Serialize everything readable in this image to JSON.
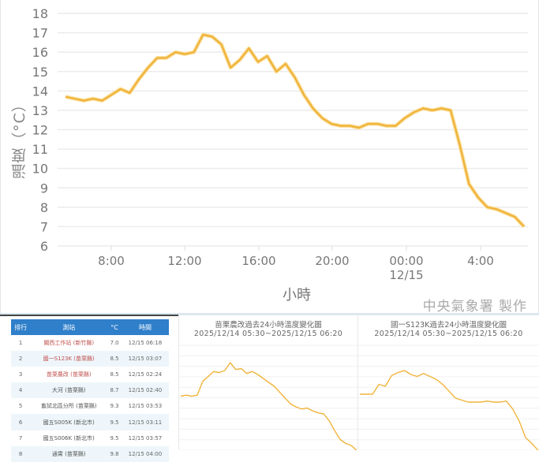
{
  "main_chart": {
    "ylabel": "溫度（°C）",
    "xlabel": "小時",
    "credit": "中央氣象署 製作",
    "line_color": "#f0b43c",
    "y_ticks": [
      "18",
      "17",
      "16",
      "15",
      "14",
      "13",
      "12",
      "11",
      "10",
      "9",
      "8",
      "7",
      "6"
    ],
    "x_ticks": [
      {
        "label": "8:00",
        "sub": ""
      },
      {
        "label": "12:00",
        "sub": ""
      },
      {
        "label": "16:00",
        "sub": ""
      },
      {
        "label": "20:00",
        "sub": ""
      },
      {
        "label": "00:00",
        "sub": "12/15"
      },
      {
        "label": "4:00",
        "sub": ""
      }
    ]
  },
  "ranking_table": {
    "header": {
      "rank": "排行",
      "station": "測站",
      "temp": "°C",
      "time": "時間"
    },
    "rows": [
      {
        "rank": "1",
        "station": "關西工作站 (新竹縣)",
        "temp": "7.0",
        "time": "12/15 06:18"
      },
      {
        "rank": "2",
        "station": "國一S123K (苗栗縣)",
        "temp": "8.5",
        "time": "12/15 03:07"
      },
      {
        "rank": "3",
        "station": "苗栗農改 (苗栗縣)",
        "temp": "8.5",
        "time": "12/15 02:24"
      },
      {
        "rank": "4",
        "station": "大河 (苗栗縣)",
        "temp": "8.7",
        "time": "12/15 02:40"
      },
      {
        "rank": "5",
        "station": "畜試北區分所 (苗栗縣)",
        "temp": "9.3",
        "time": "12/15 03:53"
      },
      {
        "rank": "6",
        "station": "國五S005K (新北市)",
        "temp": "9.5",
        "time": "12/15 03:11"
      },
      {
        "rank": "7",
        "station": "國五S006K (新北市)",
        "temp": "9.5",
        "time": "12/15 03:57"
      },
      {
        "rank": "8",
        "station": "通霄 (苗栗縣)",
        "temp": "9.8",
        "time": "12/15 04:00"
      }
    ]
  },
  "mini_charts": [
    {
      "title": "苗栗農改過去24小時溫度變化圖",
      "range": "2025/12/14 05:30~2025/12/15 06:20"
    },
    {
      "title": "國一S123K過去24小時溫度變化圖",
      "range": "2025/12/14 05:30~2025/12/15 06:20"
    }
  ],
  "chart_data": [
    {
      "type": "line",
      "title": "",
      "xlabel": "小時",
      "ylabel": "溫度（°C）",
      "ylim": [
        6,
        18
      ],
      "grid": true,
      "x_tick_labels": [
        "8:00",
        "12:00",
        "16:00",
        "20:00",
        "00:00 12/15",
        "4:00"
      ],
      "series": [
        {
          "name": "溫度",
          "x": [
            "05:30",
            "06:00",
            "06:30",
            "07:00",
            "07:30",
            "08:00",
            "08:30",
            "09:00",
            "09:30",
            "10:00",
            "10:30",
            "11:00",
            "11:30",
            "12:00",
            "12:30",
            "13:00",
            "13:30",
            "14:00",
            "14:30",
            "15:00",
            "15:30",
            "16:00",
            "16:30",
            "17:00",
            "17:30",
            "18:00",
            "18:30",
            "19:00",
            "19:30",
            "20:00",
            "20:30",
            "21:00",
            "21:30",
            "22:00",
            "22:30",
            "23:00",
            "23:30",
            "00:00",
            "00:30",
            "01:00",
            "01:30",
            "02:00",
            "02:30",
            "03:00",
            "03:30",
            "04:00",
            "04:30",
            "05:00",
            "05:30",
            "06:00",
            "06:20"
          ],
          "values": [
            13.7,
            13.6,
            13.5,
            13.6,
            13.5,
            13.8,
            14.1,
            13.9,
            14.6,
            15.2,
            15.7,
            15.7,
            16.0,
            15.9,
            16.0,
            16.9,
            16.8,
            16.4,
            15.2,
            15.6,
            16.2,
            15.5,
            15.8,
            15.0,
            15.4,
            14.7,
            13.8,
            13.1,
            12.6,
            12.3,
            12.2,
            12.2,
            12.1,
            12.3,
            12.3,
            12.2,
            12.2,
            12.6,
            12.9,
            13.1,
            13.0,
            13.1,
            13.0,
            11.2,
            9.2,
            8.5,
            8.0,
            7.9,
            7.7,
            7.5,
            7.0
          ]
        }
      ]
    },
    {
      "type": "line",
      "title": "苗栗農改過去24小時溫度變化圖",
      "subtitle": "2025/12/14 05:30~2025/12/15 06:20",
      "series": [
        {
          "name": "溫度",
          "values": [
            14.0,
            14.1,
            14.0,
            14.1,
            15.5,
            16.0,
            16.5,
            16.4,
            16.6,
            17.4,
            16.7,
            16.8,
            16.3,
            16.5,
            16.2,
            15.8,
            15.4,
            15.0,
            14.4,
            13.8,
            13.2,
            12.9,
            12.7,
            12.8,
            12.5,
            12.3,
            12.2,
            11.5,
            10.5,
            9.6,
            9.2,
            9.0,
            8.5
          ]
        }
      ]
    },
    {
      "type": "line",
      "title": "國一S123K過去24小時溫度變化圖",
      "subtitle": "2025/12/14 05:30~2025/12/15 06:20",
      "series": [
        {
          "name": "溫度",
          "values": [
            14.2,
            14.2,
            14.2,
            15.2,
            15.0,
            16.1,
            16.4,
            16.6,
            16.2,
            16.0,
            16.3,
            16.0,
            15.7,
            15.2,
            14.5,
            13.8,
            13.6,
            13.4,
            13.4,
            13.4,
            13.5,
            13.4,
            13.4,
            13.5,
            12.7,
            11.5,
            9.8,
            9.2,
            8.5
          ]
        }
      ]
    }
  ]
}
